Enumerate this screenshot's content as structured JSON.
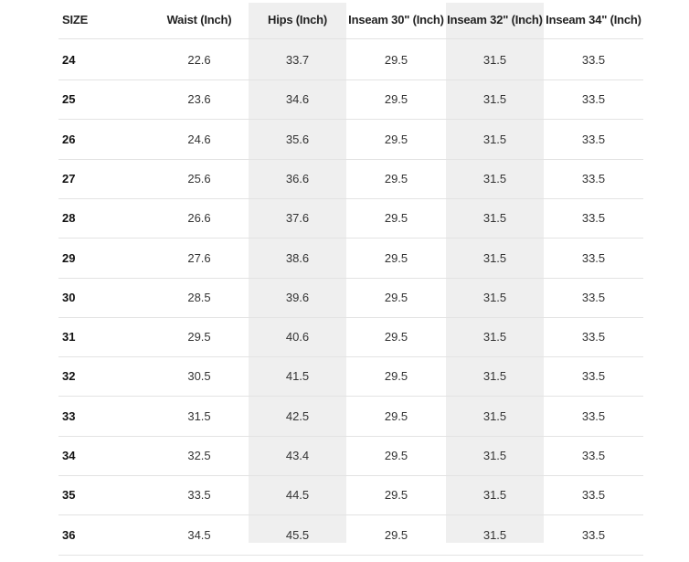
{
  "table": {
    "headers": [
      "SIZE",
      "Waist (Inch)",
      "Hips (Inch)",
      "Inseam 30\" (Inch)",
      "Inseam 32\" (Inch)",
      "Inseam 34\" (Inch)"
    ],
    "rows": [
      [
        "24",
        "22.6",
        "33.7",
        "29.5",
        "31.5",
        "33.5"
      ],
      [
        "25",
        "23.6",
        "34.6",
        "29.5",
        "31.5",
        "33.5"
      ],
      [
        "26",
        "24.6",
        "35.6",
        "29.5",
        "31.5",
        "33.5"
      ],
      [
        "27",
        "25.6",
        "36.6",
        "29.5",
        "31.5",
        "33.5"
      ],
      [
        "28",
        "26.6",
        "37.6",
        "29.5",
        "31.5",
        "33.5"
      ],
      [
        "29",
        "27.6",
        "38.6",
        "29.5",
        "31.5",
        "33.5"
      ],
      [
        "30",
        "28.5",
        "39.6",
        "29.5",
        "31.5",
        "33.5"
      ],
      [
        "31",
        "29.5",
        "40.6",
        "29.5",
        "31.5",
        "33.5"
      ],
      [
        "32",
        "30.5",
        "41.5",
        "29.5",
        "31.5",
        "33.5"
      ],
      [
        "33",
        "31.5",
        "42.5",
        "29.5",
        "31.5",
        "33.5"
      ],
      [
        "34",
        "32.5",
        "43.4",
        "29.5",
        "31.5",
        "33.5"
      ],
      [
        "35",
        "33.5",
        "44.5",
        "29.5",
        "31.5",
        "33.5"
      ],
      [
        "36",
        "34.5",
        "45.5",
        "29.5",
        "31.5",
        "33.5"
      ]
    ]
  },
  "colors": {
    "shaded_column": "#efefef",
    "row_divider": "#e3e3e3",
    "text": "#333333"
  }
}
